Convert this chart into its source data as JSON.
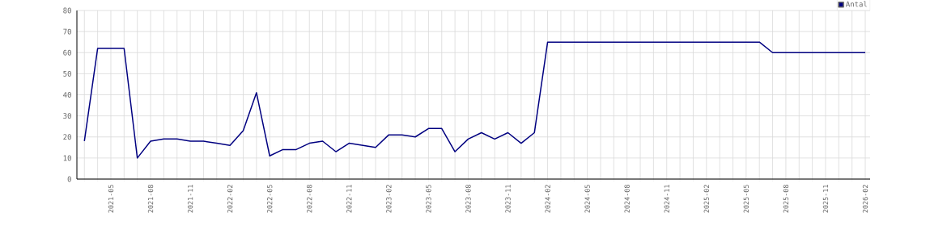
{
  "chart_data": {
    "type": "line",
    "x": [
      "2021-03",
      "2021-04",
      "2021-05",
      "2021-06",
      "2021-07",
      "2021-08",
      "2021-09",
      "2021-10",
      "2021-11",
      "2021-12",
      "2022-01",
      "2022-02",
      "2022-03",
      "2022-04",
      "2022-05",
      "2022-06",
      "2022-07",
      "2022-08",
      "2022-09",
      "2022-10",
      "2022-11",
      "2022-12",
      "2023-01",
      "2023-02",
      "2023-03",
      "2023-04",
      "2023-05",
      "2023-06",
      "2023-07",
      "2023-08",
      "2023-09",
      "2023-10",
      "2023-11",
      "2023-12",
      "2024-01",
      "2024-02",
      "2024-03",
      "2024-04",
      "2024-05",
      "2024-06",
      "2024-07",
      "2024-08",
      "2024-09",
      "2024-10",
      "2024-11",
      "2024-12",
      "2025-01",
      "2025-02",
      "2025-03",
      "2025-04",
      "2025-05",
      "2025-06",
      "2025-07",
      "2025-08",
      "2025-09",
      "2025-10",
      "2025-11",
      "2025-12",
      "2026-01",
      "2026-02"
    ],
    "series": [
      {
        "name": "Antal",
        "color": "#000080",
        "values": [
          18,
          62,
          62,
          62,
          10,
          18,
          19,
          19,
          18,
          18,
          17,
          16,
          23,
          41,
          11,
          14,
          14,
          17,
          18,
          13,
          17,
          16,
          15,
          21,
          21,
          20,
          24,
          24,
          13,
          19,
          22,
          19,
          22,
          17,
          22,
          65,
          65,
          65,
          65,
          65,
          65,
          65,
          65,
          65,
          65,
          65,
          65,
          65,
          65,
          65,
          65,
          65,
          60,
          60,
          60,
          60,
          60,
          60,
          60,
          60
        ]
      }
    ],
    "xlim": [
      "2021-02-14",
      "2026-02-12"
    ],
    "xticks": [
      {
        "value": "2021-03",
        "label": null
      },
      {
        "value": "2021-04",
        "label": null
      },
      "2021-05",
      {
        "value": "2021-06",
        "label": null
      },
      {
        "value": "2021-07",
        "label": null
      },
      "2021-08",
      {
        "value": "2021-09",
        "label": null
      },
      {
        "value": "2021-10",
        "label": null
      },
      "2021-11",
      {
        "value": "2021-12",
        "label": null
      },
      {
        "value": "2022-01",
        "label": null
      },
      "2022-02",
      {
        "value": "2022-03",
        "label": null
      },
      {
        "value": "2022-04",
        "label": null
      },
      "2022-05",
      {
        "value": "2022-06",
        "label": null
      },
      {
        "value": "2022-07",
        "label": null
      },
      "2022-08",
      {
        "value": "2022-09",
        "label": null
      },
      {
        "value": "2022-10",
        "label": null
      },
      "2022-11",
      {
        "value": "2022-12",
        "label": null
      },
      {
        "value": "2023-01",
        "label": null
      },
      "2023-02",
      {
        "value": "2023-03",
        "label": null
      },
      {
        "value": "2023-04",
        "label": null
      },
      "2023-05",
      {
        "value": "2023-06",
        "label": null
      },
      {
        "value": "2023-07",
        "label": null
      },
      "2023-08",
      {
        "value": "2023-09",
        "label": null
      },
      {
        "value": "2023-10",
        "label": null
      },
      "2023-11",
      {
        "value": "2023-12",
        "label": null
      },
      {
        "value": "2024-01",
        "label": null
      },
      "2024-02",
      {
        "value": "2024-03",
        "label": null
      },
      {
        "value": "2024-04",
        "label": null
      },
      "2024-05",
      {
        "value": "2024-06",
        "label": null
      },
      {
        "value": "2024-07",
        "label": null
      },
      "2024-08",
      {
        "value": "2024-09",
        "label": null
      },
      {
        "value": "2024-10",
        "label": null
      },
      "2024-11",
      {
        "value": "2024-12",
        "label": null
      },
      {
        "value": "2025-01",
        "label": null
      },
      "2025-02",
      {
        "value": "2025-03",
        "label": null
      },
      {
        "value": "2025-04",
        "label": null
      },
      "2025-05",
      {
        "value": "2025-06",
        "label": null
      },
      {
        "value": "2025-07",
        "label": null
      },
      "2025-08",
      {
        "value": "2025-09",
        "label": null
      },
      {
        "value": "2025-10",
        "label": null
      },
      "2025-11",
      {
        "value": "2025-12",
        "label": null
      },
      {
        "value": "2026-01",
        "label": null
      },
      "2026-02"
    ],
    "ylim": [
      0,
      80
    ],
    "yticks": [
      0,
      10,
      20,
      30,
      40,
      50,
      60,
      70,
      80
    ],
    "grid": true,
    "legend": "top right",
    "marker": "none",
    "line_style": "solid"
  }
}
